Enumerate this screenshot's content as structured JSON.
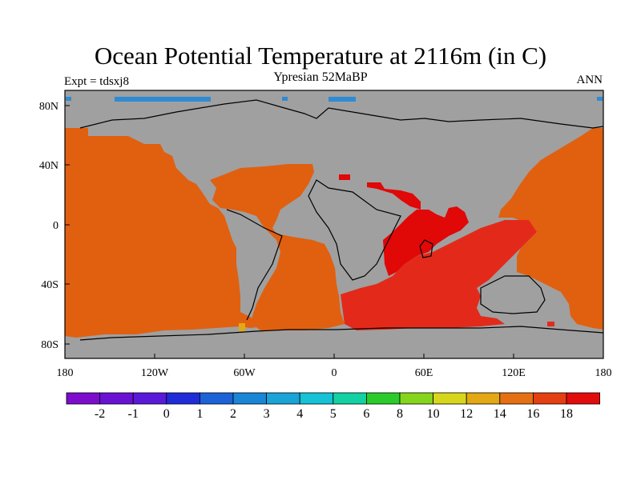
{
  "title": "Ocean Potential Temperature at 2116m (in C)",
  "subtitle": "Ypresian  52MaBP",
  "experiment": "Expt = tdsxj8",
  "period": "ANN",
  "map": {
    "lon_labels": [
      "180",
      "120W",
      "60W",
      "0",
      "60E",
      "120E",
      "180"
    ],
    "lat_labels": [
      "80N",
      "40N",
      "0",
      "40S",
      "80S"
    ]
  },
  "colorbar": {
    "labels": [
      "-2",
      "-1",
      "0",
      "1",
      "2",
      "3",
      "4",
      "5",
      "6",
      "8",
      "10",
      "12",
      "14",
      "16",
      "18"
    ],
    "colors": [
      "#7d0ccd",
      "#6a12d4",
      "#5a1ad9",
      "#1f2cd8",
      "#1d63d8",
      "#1a86d6",
      "#19a3d6",
      "#15c2d6",
      "#13d1a2",
      "#2ccb2c",
      "#86d51d",
      "#d8d61c",
      "#e3a814",
      "#e57013",
      "#e43f12",
      "#e30c0c"
    ]
  },
  "colors": {
    "land": "#a0a0a0",
    "ocean_warm": "#e06010",
    "ocean_hot": "#e32a1a",
    "ocean_hottest": "#e10808",
    "cold_strip": "#2f8bd3"
  }
}
